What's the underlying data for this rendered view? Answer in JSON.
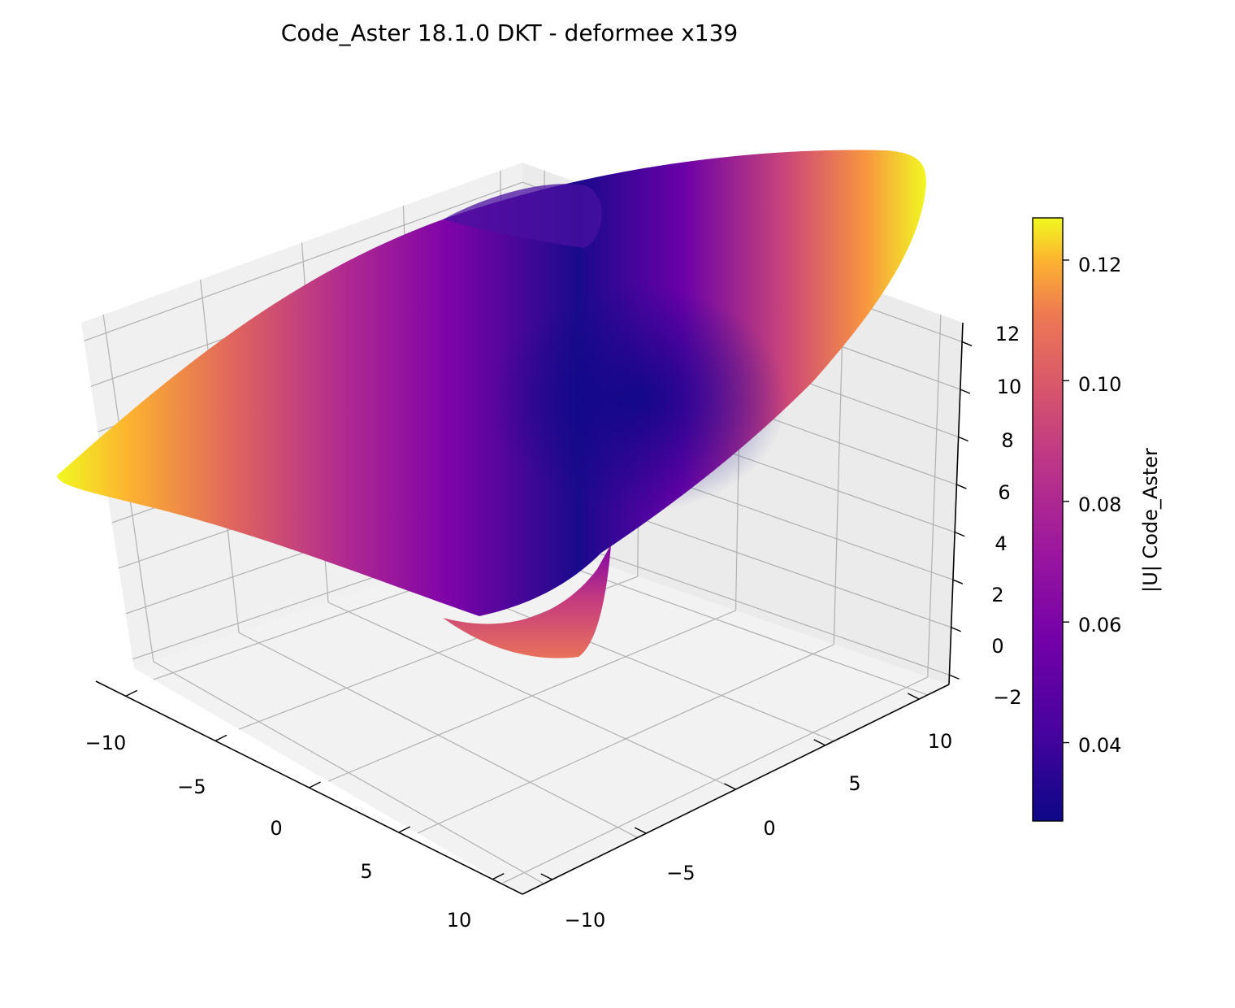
{
  "chart_data": {
    "type": "surface3d",
    "title": "Code_Aster 18.1.0 DKT - deformee x139",
    "x_ticks": [
      "−10",
      "−5",
      "0",
      "5",
      "10"
    ],
    "y_ticks": [
      "−10",
      "−5",
      "0",
      "5",
      "10"
    ],
    "z_ticks": [
      "−2",
      "0",
      "2",
      "4",
      "6",
      "8",
      "10",
      "12"
    ],
    "xlim": [
      -10,
      10
    ],
    "ylim": [
      -10,
      10
    ],
    "zlim": [
      -2,
      12
    ],
    "colormap": "plasma",
    "colorbar": {
      "label": "|U| Code_Aster",
      "ticks": [
        "0.04",
        "0.06",
        "0.08",
        "0.10",
        "0.12"
      ],
      "range": [
        0.027,
        0.127
      ],
      "tick_values": [
        0.04,
        0.06,
        0.08,
        0.1,
        0.12
      ]
    },
    "grid": true
  }
}
